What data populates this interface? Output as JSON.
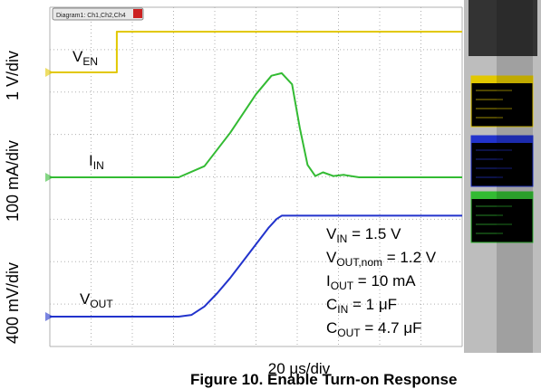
{
  "tab_label": "Diagram1: Ch1,Ch2,Ch4",
  "chart_data": {
    "type": "line",
    "title": "",
    "xlabel": "20 μs/div",
    "x_unit": "μs",
    "xlim": [
      -80,
      80
    ],
    "series": [
      {
        "name": "V_EN",
        "color": "#e2c800",
        "unit": "V",
        "x": [
          -80,
          -54,
          -54,
          80
        ],
        "y": [
          0,
          0,
          1.2,
          1.2
        ]
      },
      {
        "name": "I_IN",
        "color": "#33bb33",
        "unit": "mA",
        "x": [
          -80,
          -30,
          -20,
          -10,
          0,
          6,
          10,
          14,
          17,
          20,
          23,
          26,
          30,
          34,
          40,
          80
        ],
        "y": [
          0,
          0,
          18,
          72,
          134,
          164,
          168,
          150,
          80,
          20,
          2,
          8,
          2,
          4,
          0,
          0
        ]
      },
      {
        "name": "V_OUT",
        "color": "#2233cc",
        "unit": "V",
        "x": [
          -80,
          -30,
          -25,
          -20,
          -15,
          -10,
          -5,
          0,
          5,
          8,
          10,
          12,
          80
        ],
        "y": [
          0,
          0,
          0.02,
          0.12,
          0.28,
          0.46,
          0.66,
          0.86,
          1.06,
          1.16,
          1.2,
          1.2,
          1.2
        ]
      }
    ],
    "trace_labels": [
      {
        "main": "V",
        "sub": "EN"
      },
      {
        "main": "I",
        "sub": "IN"
      },
      {
        "main": "V",
        "sub": "OUT"
      }
    ],
    "scale_labels": [
      "1 V/div",
      "100 mA/div",
      "400 mV/div"
    ],
    "conditions": [
      {
        "main": "V",
        "sub": "IN",
        "rest": " = 1.5 V"
      },
      {
        "main": "V",
        "sub": "OUT,nom",
        "rest": " = 1.2 V"
      },
      {
        "main": "I",
        "sub": "OUT",
        "rest": " = 10 mA"
      },
      {
        "main": "C",
        "sub": "IN",
        "rest": " = 1 μF"
      },
      {
        "main": "C",
        "sub": "OUT",
        "rest": " = 4.7 μF"
      }
    ],
    "grid": true
  },
  "caption": "Figure 10. Enable Turn-on Response",
  "colors": {
    "ch1": "#e2c800",
    "ch2": "#33bb33",
    "ch4": "#2233cc",
    "panel": "#bdbdbd",
    "plot_bg": "#ffffff",
    "grid": "#b0b0b0"
  }
}
